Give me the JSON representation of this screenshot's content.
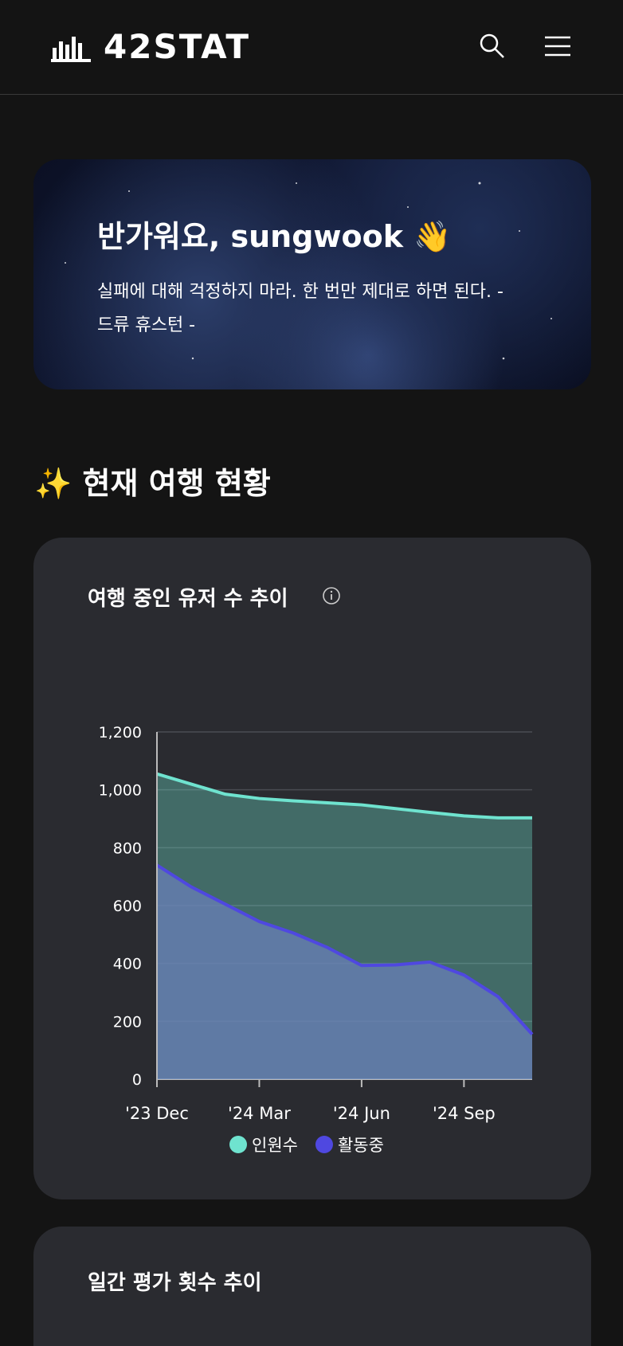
{
  "header": {
    "logo": "42STAT"
  },
  "hero": {
    "title": "반가워요, sungwook 👋",
    "quote": "실패에 대해 걱정하지 마라. 한 번만 제대로 하면 된다. - 드류 휴스턴 -"
  },
  "section": {
    "title": "✨ 현재 여행 현황"
  },
  "chart_data": {
    "type": "area",
    "title": "여행 중인 유저 수 추이",
    "categories": [
      "'23 Dec",
      null,
      null,
      "'24 Mar",
      null,
      null,
      "'24 Jun",
      null,
      null,
      "'24 Sep",
      null,
      null
    ],
    "series": [
      {
        "name": "인원수",
        "color": "#6fe3cf",
        "values": [
          1055,
          1020,
          985,
          970,
          962,
          955,
          948,
          935,
          922,
          910,
          903,
          903
        ]
      },
      {
        "name": "활동중",
        "color": "#4f48e0",
        "values": [
          740,
          665,
          605,
          545,
          505,
          455,
          393,
          395,
          405,
          360,
          285,
          155
        ]
      }
    ],
    "ylim": [
      0,
      1200
    ],
    "yticks": [
      0,
      200,
      400,
      600,
      800,
      {
        "value": 1000,
        "label": "1,000"
      },
      {
        "value": 1200,
        "label": "1,200"
      }
    ],
    "grid": true,
    "legend": "bottom"
  },
  "second_card": {
    "title": "일간 평가 횟수 추이"
  }
}
